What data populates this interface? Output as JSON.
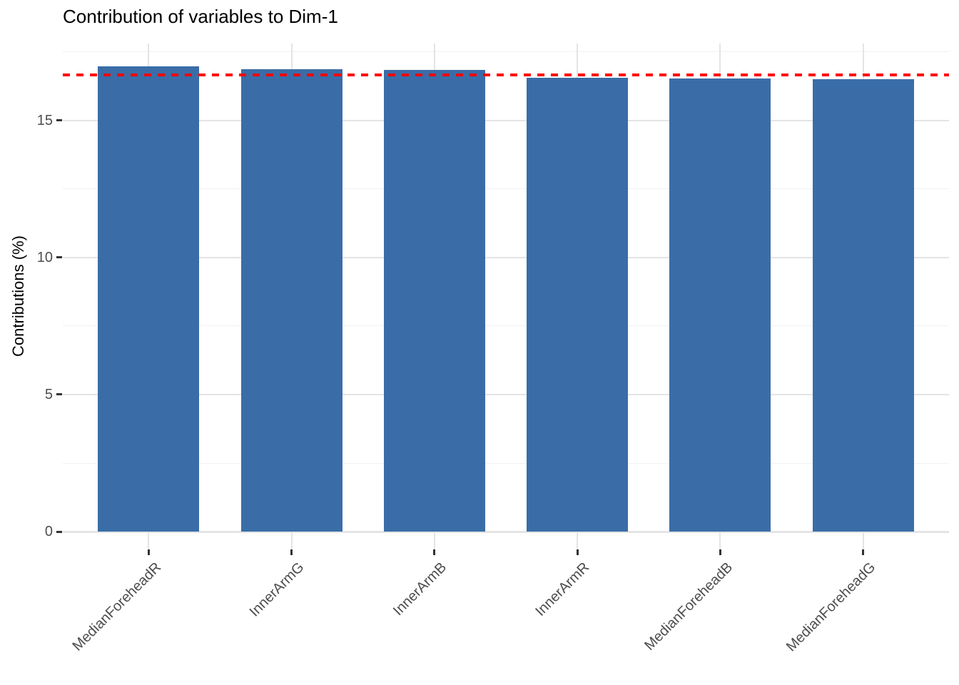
{
  "chart_data": {
    "type": "bar",
    "title": "Contribution of variables to Dim-1",
    "xlabel": "",
    "ylabel": "Contributions (%)",
    "categories": [
      "MedianForeheadR",
      "InnerArmG",
      "InnerArmB",
      "InnerArmR",
      "MedianForeheadB",
      "MedianForeheadG"
    ],
    "values": [
      16.97,
      16.88,
      16.84,
      16.56,
      16.54,
      16.51
    ],
    "y_major_ticks": [
      0,
      5,
      10,
      15
    ],
    "y_minor_gridlines": [
      2.5,
      7.5,
      12.5,
      17.5
    ],
    "ylim": [
      -0.65,
      17.81
    ],
    "x_tick_angle_deg": 45,
    "grid": "horizontal major+minor, vertical major at category centers",
    "legend_position": "none",
    "reference_line": {
      "value": 16.67,
      "style": "dashed"
    }
  },
  "colors": {
    "background": "#FFFFFF",
    "bar": "#3A6DA8",
    "reference_line": "#FF0000",
    "grid_major": "#E4E4E4",
    "grid_minor": "#F1F1F1",
    "axis_text": "#4D4D4D",
    "title_text": "#000000",
    "tick_mark": "#333333"
  }
}
